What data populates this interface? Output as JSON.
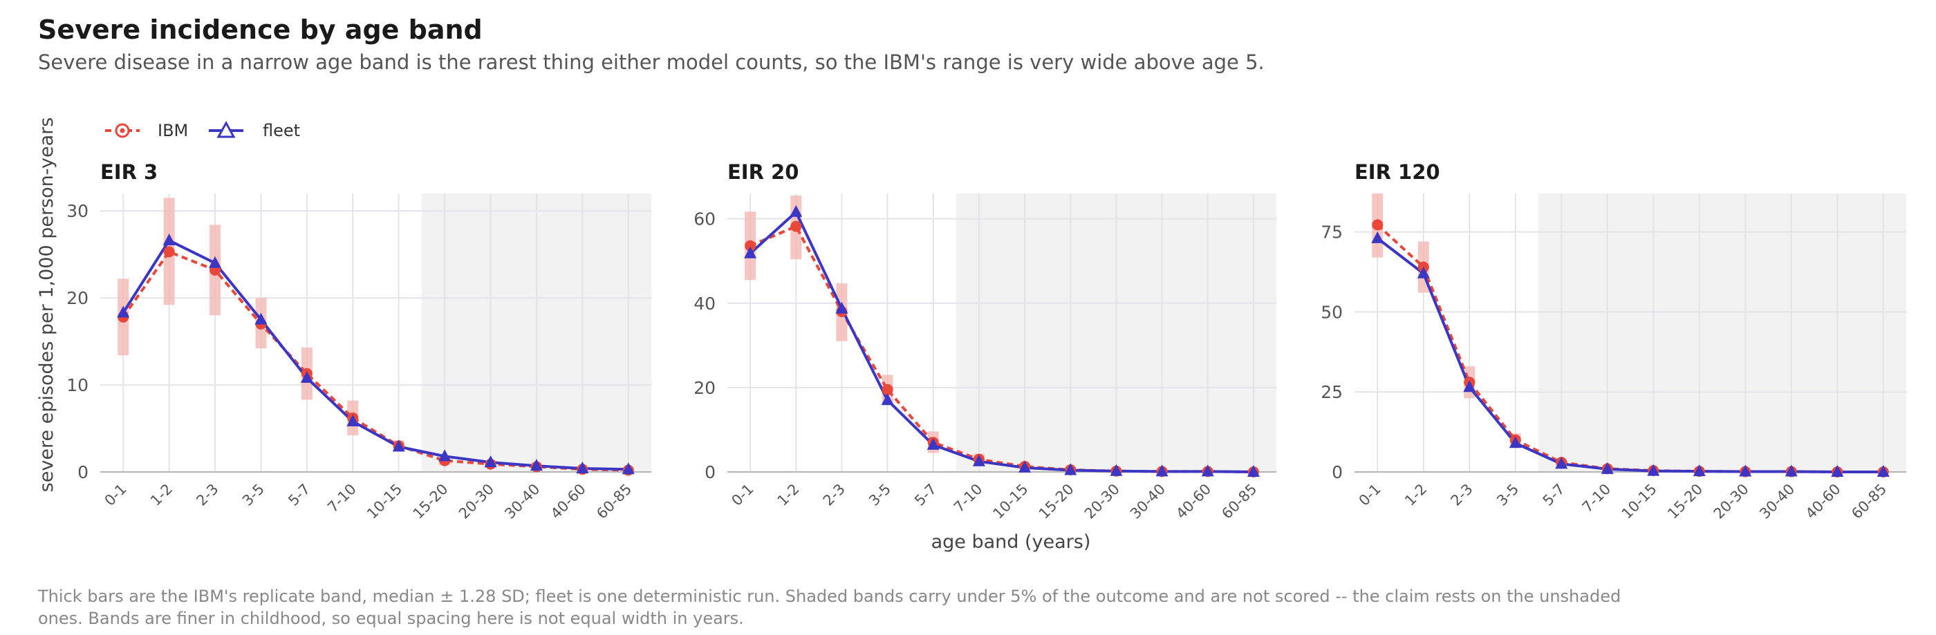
{
  "title": "Severe incidence by age band",
  "subtitle": "Severe disease in a narrow age band is the rarest thing either model counts, so the IBM's range is very wide above age 5.",
  "caption_lines": [
    "Thick bars are the IBM's replicate band, median ± 1.28 SD; fleet is one deterministic run. Shaded bands carry under 5% of the outcome and are not scored -- the claim rests on the unshaded",
    "ones. Bands are finer in childhood, so equal spacing here is not equal width in years."
  ],
  "colors": {
    "ibm": "#e8473a",
    "ibm_band": "#f2b8b3",
    "fleet": "#3b36c4",
    "shade": "#f2f2f2"
  },
  "legend": {
    "placement": "top-left",
    "items": [
      "IBM",
      "fleet"
    ]
  },
  "chart_data": {
    "type": "line",
    "xlabel": "age band (years)",
    "ylabel": "severe episodes per 1,000 person-years",
    "categories": [
      "0-1",
      "1-2",
      "2-3",
      "3-5",
      "5-7",
      "7-10",
      "10-15",
      "15-20",
      "20-30",
      "30-40",
      "40-60",
      "60-85"
    ],
    "grid": true,
    "panels": [
      {
        "title": "EIR 3",
        "ylim": [
          0,
          32
        ],
        "yticks": [
          0,
          10,
          20,
          30
        ],
        "shaded_from": "15-20",
        "series": [
          {
            "name": "IBM",
            "values": [
              17.8,
              25.3,
              23.2,
              17.0,
              11.3,
              6.2,
              3.0,
              1.3,
              0.9,
              0.6,
              0.3,
              0.2
            ],
            "band_low": [
              13.4,
              19.2,
              18.0,
              14.2,
              8.3,
              4.2,
              2.4,
              0.8,
              0.5,
              0.3,
              0.1,
              0.0
            ],
            "band_high": [
              22.2,
              31.5,
              28.4,
              20.0,
              14.3,
              8.2,
              3.6,
              1.8,
              1.3,
              0.9,
              0.5,
              0.4
            ]
          },
          {
            "name": "fleet",
            "values": [
              18.3,
              26.6,
              24.0,
              17.5,
              10.8,
              5.8,
              2.9,
              1.8,
              1.1,
              0.7,
              0.4,
              0.3
            ]
          }
        ]
      },
      {
        "title": "EIR 20",
        "ylim": [
          0,
          66
        ],
        "yticks": [
          0,
          20,
          40,
          60
        ],
        "shaded_from": "7-10",
        "series": [
          {
            "name": "IBM",
            "values": [
              53.6,
              58.2,
              38.0,
              19.5,
              7.0,
              3.0,
              1.3,
              0.5,
              0.2,
              0.1,
              0.1,
              0.0
            ],
            "band_low": [
              45.5,
              50.4,
              31.0,
              16.0,
              4.5,
              1.8,
              0.7,
              0.2,
              0.0,
              0.0,
              0.0,
              0.0
            ],
            "band_high": [
              61.7,
              65.5,
              44.7,
              23.0,
              9.6,
              4.3,
              1.9,
              0.8,
              0.4,
              0.3,
              0.2,
              0.1
            ]
          },
          {
            "name": "fleet",
            "values": [
              51.8,
              61.6,
              38.7,
              17.0,
              6.4,
              2.5,
              1.0,
              0.4,
              0.2,
              0.1,
              0.1,
              0.0
            ]
          }
        ]
      },
      {
        "title": "EIR 120",
        "ylim": [
          0,
          87
        ],
        "yticks": [
          0,
          25,
          50,
          75
        ],
        "shaded_from": "5-7",
        "series": [
          {
            "name": "IBM",
            "values": [
              77.2,
              64.0,
              28.0,
              10.0,
              3.0,
              1.0,
              0.4,
              0.2,
              0.1,
              0.1,
              0.0,
              0.0
            ],
            "band_low": [
              67.0,
              56.0,
              23.0,
              8.0,
              2.0,
              0.5,
              0.1,
              0.0,
              0.0,
              0.0,
              0.0,
              0.0
            ],
            "band_high": [
              87.0,
              72.0,
              33.0,
              12.0,
              4.0,
              1.5,
              0.7,
              0.4,
              0.2,
              0.2,
              0.1,
              0.1
            ]
          },
          {
            "name": "fleet",
            "values": [
              73.0,
              62.0,
              26.5,
              9.0,
              2.5,
              0.9,
              0.3,
              0.2,
              0.1,
              0.1,
              0.0,
              0.0
            ]
          }
        ]
      }
    ]
  }
}
